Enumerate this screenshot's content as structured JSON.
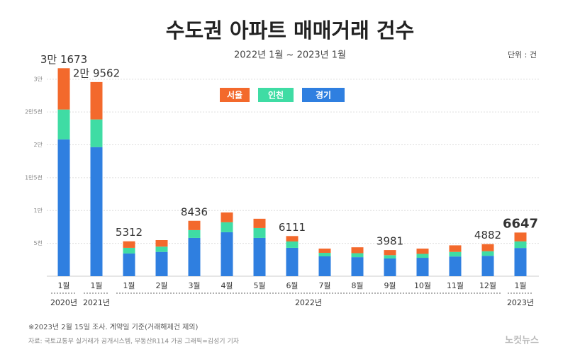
{
  "chart_data": {
    "type": "stacked_bar",
    "title": "수도권 아파트 매매거래 건수",
    "subtitle": "2022년 1월 ~ 2023년 1월",
    "unit": "단위 : 건",
    "categories": [
      "1월",
      "1월",
      "1월",
      "2월",
      "3월",
      "4월",
      "5월",
      "6월",
      "7월",
      "8월",
      "9월",
      "10월",
      "11월",
      "12월",
      "1월"
    ],
    "groups": [
      {
        "label": "2020년",
        "count": 1
      },
      {
        "label": "2021년",
        "count": 1
      },
      {
        "label": "2022년",
        "count": 12
      },
      {
        "label": "2023년",
        "count": 1
      }
    ],
    "series": [
      {
        "name": "경기",
        "color": "#2f7fe0",
        "values": [
          20840,
          19660,
          3460,
          3700,
          5830,
          6700,
          5830,
          4320,
          3020,
          2900,
          2700,
          2800,
          3000,
          3100,
          4300
        ]
      },
      {
        "name": "인천",
        "color": "#3fdca4",
        "values": [
          4540,
          4210,
          860,
          800,
          1190,
          1510,
          1510,
          970,
          540,
          600,
          500,
          600,
          700,
          700,
          1000
        ]
      },
      {
        "name": "서울",
        "color": "#f3692c",
        "values": [
          6293,
          5692,
          992,
          1000,
          1416,
          1490,
          1410,
          821,
          640,
          900,
          781,
          800,
          1000,
          1082,
          1347
        ]
      }
    ],
    "totals": [
      {
        "value": 31673,
        "label": "3만 1673"
      },
      {
        "value": 29562,
        "label": "2만 9562"
      },
      5312,
      null,
      8436,
      null,
      null,
      6111,
      null,
      null,
      3981,
      null,
      null,
      4882,
      6647
    ],
    "ylim": [
      0,
      33000
    ],
    "yticks": [
      {
        "value": 5000,
        "label": "5천"
      },
      {
        "value": 10000,
        "label": "1만"
      },
      {
        "value": 15000,
        "label": "1만5천"
      },
      {
        "value": 20000,
        "label": "2만"
      },
      {
        "value": 25000,
        "label": "2만5천"
      },
      {
        "value": 30000,
        "label": "3만"
      }
    ],
    "grid": true,
    "legend_order": [
      2,
      1,
      0
    ],
    "footnote": "※2023년 2월 15일 조사. 계약일 기준(거래해제건 제외)",
    "source": "자료: 국토교통부 실거래가 공개시스템, 부동산R114 가공   그래픽=김성기 기자",
    "logo": "노컷뉴스"
  }
}
